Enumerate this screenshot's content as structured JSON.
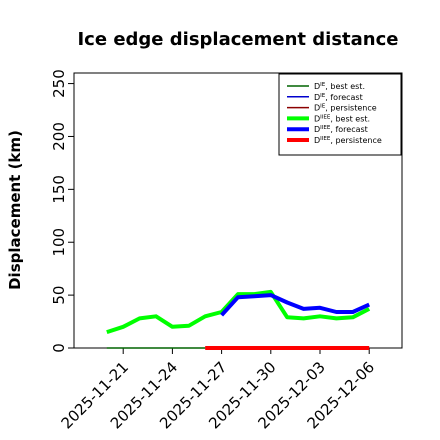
{
  "chart_data": {
    "type": "line",
    "title": "Ice edge displacement distance",
    "xlabel": "",
    "ylabel": "Displacement (km)",
    "ylim": [
      0,
      260
    ],
    "yticks": [
      0,
      50,
      100,
      150,
      200,
      250
    ],
    "xlim": [
      "2025-11-18",
      "2025-12-08"
    ],
    "xtick_labels": [
      {
        "date": "2025-11-21",
        "label": "2025-11-21",
        "color": "#000000"
      },
      {
        "date": "2025-11-24",
        "label": "2025-11-24",
        "color": "#000000"
      },
      {
        "date": "2025-11-27",
        "label": "2025-11-27",
        "color": "#228B22"
      },
      {
        "date": "2025-11-30",
        "label": "2025-11-30",
        "color": "#000000"
      },
      {
        "date": "2025-12-03",
        "label": "2025-12-03",
        "color": "#000000"
      },
      {
        "date": "2025-12-06",
        "label": "2025-12-06",
        "color": "#000000"
      }
    ],
    "grid": false,
    "legend_placement": "top-right",
    "series": [
      {
        "name": "D^IE, best est.",
        "legend_main": "D",
        "legend_sup": "IE",
        "legend_rest": ", best est.",
        "color": "#006400",
        "width": "thin",
        "x": [
          "2025-11-20",
          "2025-11-26"
        ],
        "y": [
          0,
          0
        ]
      },
      {
        "name": "D^IE, forecast",
        "legend_main": "D",
        "legend_sup": "IE",
        "legend_rest": ", forecast",
        "color": "#0000CD",
        "width": "thin",
        "x": [],
        "y": []
      },
      {
        "name": "D^IE, persistence",
        "legend_main": "D",
        "legend_sup": "IE",
        "legend_rest": ", persistence",
        "color": "#8B0000",
        "width": "thin",
        "x": [],
        "y": []
      },
      {
        "name": "D^IIEE, best est.",
        "legend_main": "D",
        "legend_sup": "IIEE",
        "legend_rest": ", best est.",
        "color": "#00FF00",
        "width": "thick",
        "x": [
          "2025-11-20",
          "2025-11-21",
          "2025-11-22",
          "2025-11-23",
          "2025-11-24",
          "2025-11-25",
          "2025-11-26",
          "2025-11-27",
          "2025-11-28",
          "2025-11-29",
          "2025-11-30",
          "2025-12-01",
          "2025-12-02",
          "2025-12-03",
          "2025-12-04",
          "2025-12-05",
          "2025-12-06"
        ],
        "y": [
          15,
          20,
          28,
          30,
          20,
          21,
          30,
          34,
          51,
          51,
          53,
          29,
          28,
          30,
          28,
          29,
          37
        ]
      },
      {
        "name": "D^IIEE, forecast",
        "legend_main": "D",
        "legend_sup": "IIEE",
        "legend_rest": ", forecast",
        "color": "#0000FF",
        "width": "thick",
        "x": [
          "2025-11-27",
          "2025-11-28",
          "2025-11-29",
          "2025-11-30",
          "2025-12-01",
          "2025-12-02",
          "2025-12-03",
          "2025-12-04",
          "2025-12-05",
          "2025-12-06"
        ],
        "y": [
          31,
          48,
          49,
          50,
          43,
          37,
          38,
          34,
          34,
          41
        ]
      },
      {
        "name": "D^IIEE, persistence",
        "legend_main": "D",
        "legend_sup": "IIEE",
        "legend_rest": ", persistence",
        "color": "#FF0000",
        "width": "thick",
        "x": [
          "2025-11-26",
          "2025-12-06"
        ],
        "y": [
          0,
          0
        ]
      }
    ]
  }
}
